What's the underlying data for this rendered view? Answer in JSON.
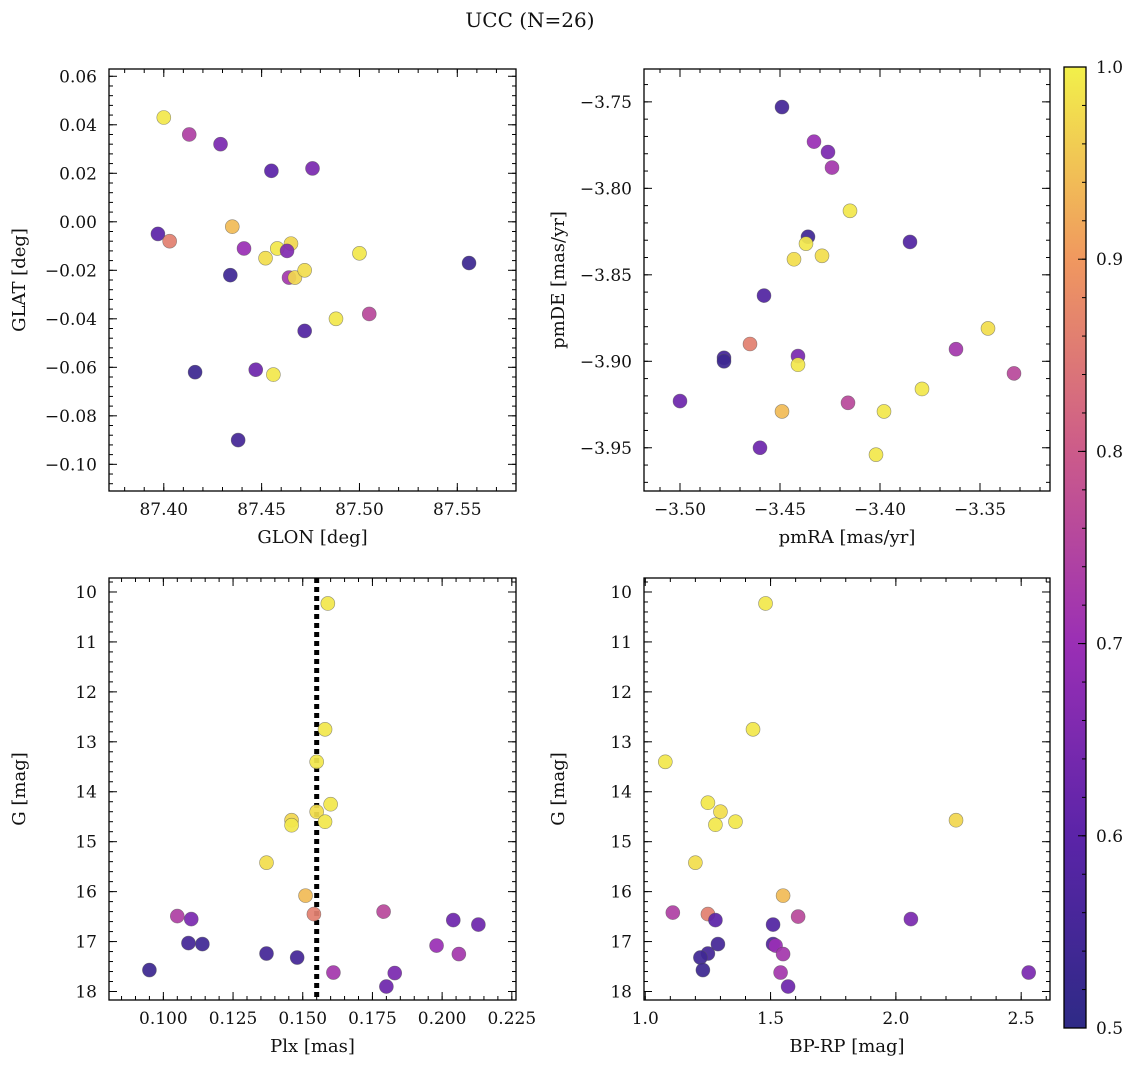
{
  "title": "UCC (N=26)",
  "colorbar": {
    "min": 0.5,
    "max": 1.0,
    "ticks": [
      0.5,
      0.6,
      0.7,
      0.8,
      0.9,
      1.0
    ]
  },
  "chart_data": [
    {
      "type": "scatter",
      "xlabel": "GLON [deg]",
      "ylabel": "GLAT [deg]",
      "xlim": [
        87.372,
        87.58
      ],
      "ylim": [
        -0.111,
        0.063
      ],
      "xticks": [
        87.4,
        87.45,
        87.5,
        87.55
      ],
      "yticks": [
        0.06,
        0.04,
        0.02,
        0.0,
        -0.02,
        -0.04,
        -0.06,
        -0.08,
        -0.1
      ],
      "points": [
        {
          "x": 87.4,
          "y": 0.043,
          "c": 0.99
        },
        {
          "x": 87.413,
          "y": 0.036,
          "c": 0.74
        },
        {
          "x": 87.429,
          "y": 0.032,
          "c": 0.65
        },
        {
          "x": 87.455,
          "y": 0.021,
          "c": 0.6
        },
        {
          "x": 87.476,
          "y": 0.022,
          "c": 0.65
        },
        {
          "x": 87.397,
          "y": -0.005,
          "c": 0.6
        },
        {
          "x": 87.403,
          "y": -0.008,
          "c": 0.86
        },
        {
          "x": 87.435,
          "y": -0.002,
          "c": 0.94
        },
        {
          "x": 87.441,
          "y": -0.011,
          "c": 0.7
        },
        {
          "x": 87.434,
          "y": -0.022,
          "c": 0.54
        },
        {
          "x": 87.452,
          "y": -0.015,
          "c": 0.98
        },
        {
          "x": 87.458,
          "y": -0.011,
          "c": 0.99
        },
        {
          "x": 87.465,
          "y": -0.009,
          "c": 0.97
        },
        {
          "x": 87.463,
          "y": -0.012,
          "c": 0.66
        },
        {
          "x": 87.464,
          "y": -0.023,
          "c": 0.72
        },
        {
          "x": 87.467,
          "y": -0.023,
          "c": 0.97
        },
        {
          "x": 87.472,
          "y": -0.02,
          "c": 0.98
        },
        {
          "x": 87.5,
          "y": -0.013,
          "c": 0.99
        },
        {
          "x": 87.556,
          "y": -0.017,
          "c": 0.53
        },
        {
          "x": 87.505,
          "y": -0.038,
          "c": 0.76
        },
        {
          "x": 87.488,
          "y": -0.04,
          "c": 0.99
        },
        {
          "x": 87.472,
          "y": -0.045,
          "c": 0.58
        },
        {
          "x": 87.416,
          "y": -0.062,
          "c": 0.53
        },
        {
          "x": 87.447,
          "y": -0.061,
          "c": 0.63
        },
        {
          "x": 87.456,
          "y": -0.063,
          "c": 0.99
        },
        {
          "x": 87.438,
          "y": -0.09,
          "c": 0.55
        }
      ]
    },
    {
      "type": "scatter",
      "xlabel": "pmRA [mas/yr]",
      "ylabel": "pmDE [mas/yr]",
      "xlim": [
        -3.518,
        -3.315
      ],
      "ylim": [
        -3.975,
        -3.731
      ],
      "xticks": [
        -3.5,
        -3.45,
        -3.4,
        -3.35
      ],
      "yticks": [
        -3.75,
        -3.8,
        -3.85,
        -3.9,
        -3.95
      ],
      "points": [
        {
          "x": -3.449,
          "y": -3.753,
          "c": 0.55
        },
        {
          "x": -3.433,
          "y": -3.773,
          "c": 0.7
        },
        {
          "x": -3.426,
          "y": -3.779,
          "c": 0.65
        },
        {
          "x": -3.424,
          "y": -3.788,
          "c": 0.72
        },
        {
          "x": -3.415,
          "y": -3.813,
          "c": 0.99
        },
        {
          "x": -3.436,
          "y": -3.828,
          "c": 0.54
        },
        {
          "x": -3.437,
          "y": -3.832,
          "c": 0.99
        },
        {
          "x": -3.443,
          "y": -3.841,
          "c": 0.98
        },
        {
          "x": -3.429,
          "y": -3.839,
          "c": 0.98
        },
        {
          "x": -3.385,
          "y": -3.831,
          "c": 0.58
        },
        {
          "x": -3.458,
          "y": -3.862,
          "c": 0.58
        },
        {
          "x": -3.478,
          "y": -3.898,
          "c": 0.55
        },
        {
          "x": -3.478,
          "y": -3.9,
          "c": 0.53
        },
        {
          "x": -3.465,
          "y": -3.89,
          "c": 0.86
        },
        {
          "x": -3.441,
          "y": -3.897,
          "c": 0.65
        },
        {
          "x": -3.441,
          "y": -3.902,
          "c": 0.99
        },
        {
          "x": -3.346,
          "y": -3.881,
          "c": 0.98
        },
        {
          "x": -3.362,
          "y": -3.893,
          "c": 0.72
        },
        {
          "x": -3.333,
          "y": -3.907,
          "c": 0.76
        },
        {
          "x": -3.379,
          "y": -3.916,
          "c": 0.99
        },
        {
          "x": -3.5,
          "y": -3.923,
          "c": 0.63
        },
        {
          "x": -3.416,
          "y": -3.924,
          "c": 0.76
        },
        {
          "x": -3.449,
          "y": -3.929,
          "c": 0.94
        },
        {
          "x": -3.398,
          "y": -3.929,
          "c": 0.99
        },
        {
          "x": -3.46,
          "y": -3.95,
          "c": 0.63
        },
        {
          "x": -3.402,
          "y": -3.954,
          "c": 0.99
        }
      ]
    },
    {
      "type": "scatter",
      "xlabel": "Plx [mas]",
      "ylabel": "G [mag]",
      "xlim": [
        0.0805,
        0.2265
      ],
      "ylim": [
        18.17,
        9.72
      ],
      "xticks": [
        0.1,
        0.125,
        0.15,
        0.175,
        0.2,
        0.225
      ],
      "yticks": [
        10,
        11,
        12,
        13,
        14,
        15,
        16,
        17,
        18
      ],
      "vline": 0.155,
      "points": [
        {
          "x": 0.159,
          "y": 10.23,
          "c": 0.99
        },
        {
          "x": 0.158,
          "y": 12.75,
          "c": 0.99
        },
        {
          "x": 0.155,
          "y": 13.4,
          "c": 0.99
        },
        {
          "x": 0.16,
          "y": 14.25,
          "c": 0.99
        },
        {
          "x": 0.146,
          "y": 14.57,
          "c": 0.97
        },
        {
          "x": 0.146,
          "y": 14.67,
          "c": 0.99
        },
        {
          "x": 0.155,
          "y": 14.4,
          "c": 0.98
        },
        {
          "x": 0.158,
          "y": 14.6,
          "c": 0.99
        },
        {
          "x": 0.137,
          "y": 15.42,
          "c": 0.98
        },
        {
          "x": 0.151,
          "y": 16.08,
          "c": 0.94
        },
        {
          "x": 0.154,
          "y": 16.45,
          "c": 0.86
        },
        {
          "x": 0.105,
          "y": 16.49,
          "c": 0.74
        },
        {
          "x": 0.11,
          "y": 16.55,
          "c": 0.65
        },
        {
          "x": 0.109,
          "y": 17.03,
          "c": 0.55
        },
        {
          "x": 0.114,
          "y": 17.05,
          "c": 0.54
        },
        {
          "x": 0.095,
          "y": 17.57,
          "c": 0.53
        },
        {
          "x": 0.137,
          "y": 17.24,
          "c": 0.55
        },
        {
          "x": 0.148,
          "y": 17.32,
          "c": 0.55
        },
        {
          "x": 0.161,
          "y": 17.62,
          "c": 0.72
        },
        {
          "x": 0.179,
          "y": 16.4,
          "c": 0.76
        },
        {
          "x": 0.18,
          "y": 17.9,
          "c": 0.63
        },
        {
          "x": 0.183,
          "y": 17.63,
          "c": 0.65
        },
        {
          "x": 0.198,
          "y": 17.08,
          "c": 0.7
        },
        {
          "x": 0.204,
          "y": 16.57,
          "c": 0.63
        },
        {
          "x": 0.206,
          "y": 17.25,
          "c": 0.72
        },
        {
          "x": 0.213,
          "y": 16.66,
          "c": 0.63
        }
      ]
    },
    {
      "type": "scatter",
      "xlabel": "BP-RP [mag]",
      "ylabel": "G [mag]",
      "xlim": [
        0.995,
        2.615
      ],
      "ylim": [
        18.17,
        9.72
      ],
      "xticks": [
        1.0,
        1.5,
        2.0,
        2.5
      ],
      "yticks": [
        10,
        11,
        12,
        13,
        14,
        15,
        16,
        17,
        18
      ],
      "points": [
        {
          "x": 1.48,
          "y": 10.23,
          "c": 0.99
        },
        {
          "x": 1.43,
          "y": 12.75,
          "c": 0.99
        },
        {
          "x": 1.08,
          "y": 13.4,
          "c": 0.99
        },
        {
          "x": 1.25,
          "y": 14.22,
          "c": 0.99
        },
        {
          "x": 1.3,
          "y": 14.4,
          "c": 0.98
        },
        {
          "x": 1.28,
          "y": 14.66,
          "c": 0.99
        },
        {
          "x": 1.36,
          "y": 14.6,
          "c": 0.99
        },
        {
          "x": 2.24,
          "y": 14.57,
          "c": 0.97
        },
        {
          "x": 1.2,
          "y": 15.42,
          "c": 0.98
        },
        {
          "x": 1.55,
          "y": 16.08,
          "c": 0.94
        },
        {
          "x": 1.11,
          "y": 16.42,
          "c": 0.74
        },
        {
          "x": 1.25,
          "y": 16.45,
          "c": 0.86
        },
        {
          "x": 1.61,
          "y": 16.5,
          "c": 0.76
        },
        {
          "x": 1.28,
          "y": 16.57,
          "c": 0.6
        },
        {
          "x": 1.51,
          "y": 16.66,
          "c": 0.58
        },
        {
          "x": 2.06,
          "y": 16.55,
          "c": 0.65
        },
        {
          "x": 1.29,
          "y": 17.05,
          "c": 0.55
        },
        {
          "x": 1.51,
          "y": 17.05,
          "c": 0.58
        },
        {
          "x": 1.52,
          "y": 17.08,
          "c": 0.7
        },
        {
          "x": 1.25,
          "y": 17.24,
          "c": 0.55
        },
        {
          "x": 1.22,
          "y": 17.32,
          "c": 0.54
        },
        {
          "x": 1.55,
          "y": 17.25,
          "c": 0.72
        },
        {
          "x": 1.23,
          "y": 17.57,
          "c": 0.53
        },
        {
          "x": 1.54,
          "y": 17.62,
          "c": 0.72
        },
        {
          "x": 1.57,
          "y": 17.9,
          "c": 0.63
        },
        {
          "x": 2.53,
          "y": 17.62,
          "c": 0.65
        }
      ]
    }
  ]
}
